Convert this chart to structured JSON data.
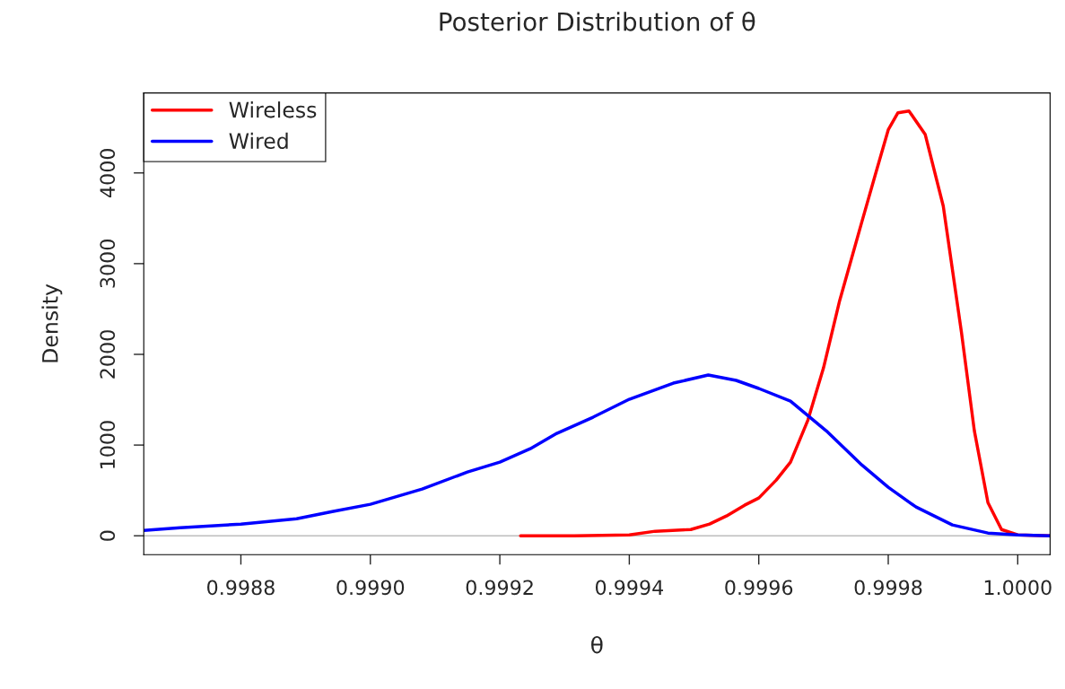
{
  "chart_data": {
    "type": "line",
    "title": "Posterior Distribution of θ",
    "xlabel": "θ",
    "ylabel": "Density",
    "xlim": [
      0.99865,
      1.00005
    ],
    "xticks": [
      0.9988,
      {
        "value": 0.999,
        "label": "0.9990"
      },
      0.9992,
      0.9994,
      0.9996,
      0.9998,
      {
        "value": 1.0,
        "label": "1.0000"
      }
    ],
    "ylim": [
      -208,
      4881
    ],
    "yticks": [
      0,
      1000,
      2000,
      3000,
      4000
    ],
    "grid": false,
    "legend": "top left",
    "line_style": "solid",
    "marker": "none",
    "ref_lines": [
      {
        "axis": "y",
        "value": 0,
        "color": "#bebebe",
        "line_style": "solid"
      }
    ],
    "series": [
      {
        "name": "Wireless",
        "color": "#ff0000",
        "x": [
          0.999232,
          0.999315,
          0.9994,
          0.99944,
          0.999495,
          0.999524,
          0.99955,
          0.999578,
          0.9996,
          0.999627,
          0.999649,
          0.999676,
          0.9997,
          0.999725,
          0.999759,
          0.99978,
          0.9998,
          0.999815,
          0.999832,
          0.999857,
          0.999885,
          0.999913,
          0.999933,
          0.999954,
          0.999975,
          1.0,
          1.00005
        ],
        "values": [
          0,
          0,
          10,
          50,
          69,
          129,
          218,
          337,
          416,
          614,
          812,
          1277,
          1851,
          2594,
          3455,
          3980,
          4475,
          4663,
          4683,
          4426,
          3634,
          2248,
          1158,
          366,
          69,
          10,
          0
        ]
      },
      {
        "name": "Wired",
        "color": "#0000ff",
        "x": [
          0.99865,
          0.998706,
          0.9988,
          0.998886,
          0.998941,
          0.999,
          0.99908,
          0.99915,
          0.9992,
          0.999247,
          0.999288,
          0.999344,
          0.9994,
          0.999468,
          0.999522,
          0.999565,
          0.9996,
          0.999649,
          0.999704,
          0.999759,
          0.9998,
          0.999843,
          0.999899,
          0.999954,
          1.0,
          1.00005
        ],
        "values": [
          59,
          89,
          129,
          188,
          267,
          347,
          515,
          703,
          812,
          960,
          1129,
          1307,
          1505,
          1683,
          1772,
          1713,
          1624,
          1485,
          1158,
          782,
          535,
          317,
          119,
          30,
          10,
          0
        ]
      }
    ]
  }
}
